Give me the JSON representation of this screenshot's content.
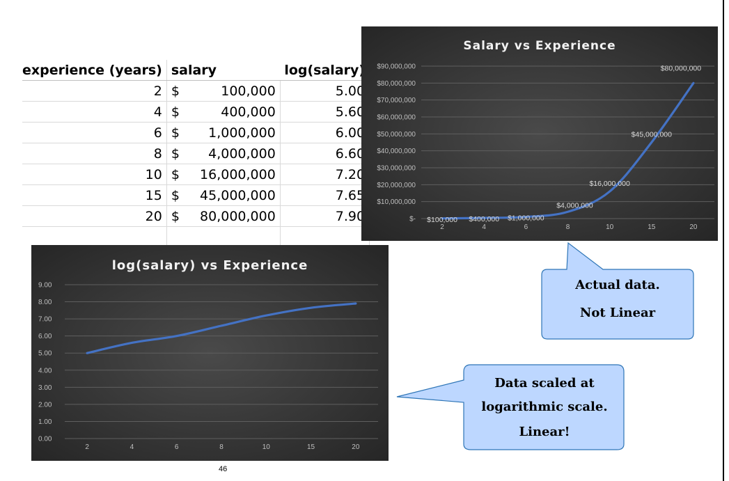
{
  "table": {
    "headers": {
      "experience": "experience (years)",
      "salary": "salary",
      "log": "log(salary)"
    },
    "currency_symbol": "$",
    "rows": [
      {
        "experience": "2",
        "salary": "100,000",
        "log": "5.00"
      },
      {
        "experience": "4",
        "salary": "400,000",
        "log": "5.60"
      },
      {
        "experience": "6",
        "salary": "1,000,000",
        "log": "6.00"
      },
      {
        "experience": "8",
        "salary": "4,000,000",
        "log": "6.60"
      },
      {
        "experience": "10",
        "salary": "16,000,000",
        "log": "7.20"
      },
      {
        "experience": "15",
        "salary": "45,000,000",
        "log": "7.65"
      },
      {
        "experience": "20",
        "salary": "80,000,000",
        "log": "7.90"
      }
    ]
  },
  "chart_data": [
    {
      "type": "line",
      "title": "Salary vs Experience",
      "categories": [
        "2",
        "4",
        "6",
        "8",
        "10",
        "15",
        "20"
      ],
      "values": [
        100000,
        400000,
        1000000,
        4000000,
        16000000,
        45000000,
        80000000
      ],
      "data_labels": [
        "$100,000",
        "$400,000",
        "$1,000,000",
        "$4,000,000",
        "$16,000,000",
        "$45,000,000",
        "$80,000,000"
      ],
      "y_ticks": [
        {
          "value": 0,
          "label": "$-"
        },
        {
          "value": 10000000,
          "label": "$10,000,000"
        },
        {
          "value": 20000000,
          "label": "$20,000,000"
        },
        {
          "value": 30000000,
          "label": "$30,000,000"
        },
        {
          "value": 40000000,
          "label": "$40,000,000"
        },
        {
          "value": 50000000,
          "label": "$50,000,000"
        },
        {
          "value": 60000000,
          "label": "$60,000,000"
        },
        {
          "value": 70000000,
          "label": "$70,000,000"
        },
        {
          "value": 80000000,
          "label": "$80,000,000"
        },
        {
          "value": 90000000,
          "label": "$90,000,000"
        }
      ],
      "ylim": [
        0,
        90000000
      ],
      "grid": true,
      "line_color": "#4472c4",
      "background": "#3c3c3c"
    },
    {
      "type": "line",
      "title": "log(salary) vs Experience",
      "categories": [
        "2",
        "4",
        "6",
        "8",
        "10",
        "15",
        "20"
      ],
      "values": [
        5.0,
        5.6,
        6.0,
        6.6,
        7.2,
        7.65,
        7.9
      ],
      "y_ticks": [
        {
          "value": 0,
          "label": "0.00"
        },
        {
          "value": 1,
          "label": "1.00"
        },
        {
          "value": 2,
          "label": "2.00"
        },
        {
          "value": 3,
          "label": "3.00"
        },
        {
          "value": 4,
          "label": "4.00"
        },
        {
          "value": 5,
          "label": "5.00"
        },
        {
          "value": 6,
          "label": "6.00"
        },
        {
          "value": 7,
          "label": "7.00"
        },
        {
          "value": 8,
          "label": "8.00"
        },
        {
          "value": 9,
          "label": "9.00"
        }
      ],
      "ylim": [
        0,
        9
      ],
      "grid": true,
      "line_color": "#4472c4",
      "background": "#3c3c3c"
    }
  ],
  "callouts": {
    "top": {
      "lines": [
        "Actual  data.",
        "Not Linear"
      ],
      "fill": "#bdd7ff",
      "stroke": "#2e75b6"
    },
    "bottom": {
      "lines": [
        "Data scaled at",
        "logarithmic scale.",
        "Linear!"
      ],
      "fill": "#bdd7ff",
      "stroke": "#2e75b6"
    }
  },
  "page_number": "46"
}
